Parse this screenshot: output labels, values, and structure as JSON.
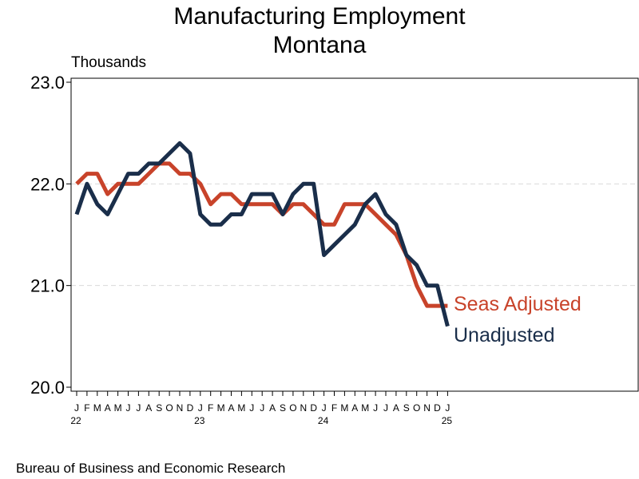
{
  "chart_data": {
    "type": "line",
    "title": "Manufacturing Employment",
    "subtitle": "Montana",
    "ylabel": "Thousands",
    "source": "Bureau of Business and Economic Research",
    "ylim": [
      20.0,
      23.0
    ],
    "yticks": [
      "20.0",
      "21.0",
      "22.0",
      "23.0"
    ],
    "ytick_values": [
      20.0,
      21.0,
      22.0,
      23.0
    ],
    "grid": "horizontal-dashed",
    "month_labels": [
      "J",
      "F",
      "M",
      "A",
      "M",
      "J",
      "J",
      "A",
      "S",
      "O",
      "N",
      "D",
      "J",
      "F",
      "M",
      "A",
      "M",
      "J",
      "J",
      "A",
      "S",
      "O",
      "N",
      "D",
      "J",
      "F",
      "M",
      "A",
      "M",
      "J",
      "J",
      "A",
      "S",
      "O",
      "N",
      "D",
      "J"
    ],
    "year_labels": [
      {
        "index": 0,
        "label": "22"
      },
      {
        "index": 12,
        "label": "23"
      },
      {
        "index": 24,
        "label": "24"
      },
      {
        "index": 36,
        "label": "25"
      }
    ],
    "series": [
      {
        "name": "Seas Adjusted",
        "color": "#c8432a",
        "values": [
          22.0,
          22.1,
          22.1,
          21.9,
          22.0,
          22.0,
          22.0,
          22.1,
          22.2,
          22.2,
          22.1,
          22.1,
          22.0,
          21.8,
          21.9,
          21.9,
          21.8,
          21.8,
          21.8,
          21.8,
          21.7,
          21.8,
          21.8,
          21.7,
          21.6,
          21.6,
          21.8,
          21.8,
          21.8,
          21.7,
          21.6,
          21.5,
          21.3,
          21.0,
          20.8,
          20.8,
          20.8
        ]
      },
      {
        "name": "Unadjusted",
        "color": "#1a2e4a",
        "values": [
          21.7,
          22.0,
          21.8,
          21.7,
          21.9,
          22.1,
          22.1,
          22.2,
          22.2,
          22.3,
          22.4,
          22.3,
          21.7,
          21.6,
          21.6,
          21.7,
          21.7,
          21.9,
          21.9,
          21.9,
          21.7,
          21.9,
          22.0,
          22.0,
          21.3,
          21.4,
          21.5,
          21.6,
          21.8,
          21.9,
          21.7,
          21.6,
          21.3,
          21.2,
          21.0,
          21.0,
          20.6
        ]
      }
    ]
  }
}
